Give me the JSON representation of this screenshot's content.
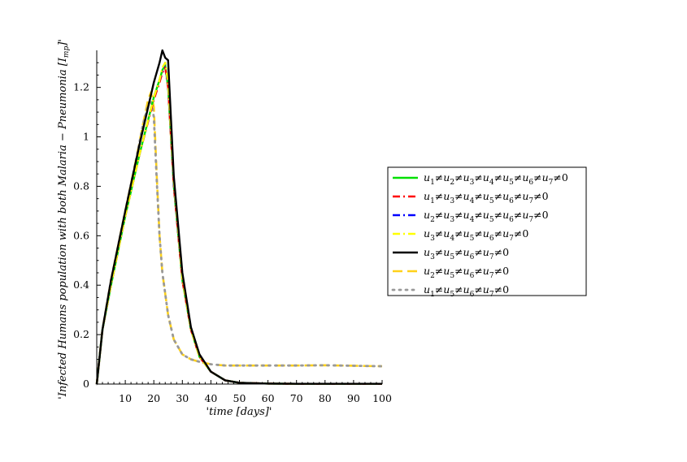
{
  "chart_data": {
    "type": "line",
    "title": "",
    "xlabel": "'time [days]'",
    "ylabel": "'Infected Humans population with both Malaria − Pneumonia [I_mp]'",
    "xlim": [
      0,
      100
    ],
    "ylim": [
      0,
      1.35
    ],
    "x_ticks": [
      10,
      20,
      30,
      40,
      50,
      60,
      70,
      80,
      90,
      100
    ],
    "y_ticks": [
      0,
      0.2,
      0.4,
      0.6,
      0.8,
      1,
      1.2
    ],
    "x_tick_labels": [
      "10",
      "20",
      "30",
      "40",
      "50",
      "60",
      "70",
      "80",
      "90",
      "100"
    ],
    "y_tick_labels": [
      "0",
      "0.2",
      "0.4",
      "0.6",
      "0.8",
      "1",
      "1.2"
    ],
    "grid": false,
    "legend_position": "right",
    "series": [
      {
        "name": "u1≠u2≠u3≠u4≠u5≠u6≠u7≠0",
        "color": "#00e000",
        "dash": "solid",
        "x": [
          0,
          2,
          5,
          10,
          15,
          20,
          22,
          23,
          24,
          25,
          27,
          30,
          33,
          36,
          40,
          45,
          50,
          60,
          70,
          80,
          90,
          100
        ],
        "y": [
          0,
          0.22,
          0.4,
          0.68,
          0.93,
          1.16,
          1.23,
          1.27,
          1.29,
          1.2,
          0.8,
          0.42,
          0.22,
          0.11,
          0.05,
          0.015,
          0.005,
          0.002,
          0.001,
          0.001,
          0.001,
          0.001
        ]
      },
      {
        "name": "u1≠u3≠u4≠u5≠u6≠u7≠0",
        "color": "#ff0000",
        "dash": "dashdot",
        "x": [
          0,
          2,
          5,
          10,
          15,
          20,
          22,
          23,
          24,
          25,
          27,
          30,
          33,
          36,
          40,
          45,
          50,
          60,
          70,
          80,
          90,
          100
        ],
        "y": [
          0,
          0.22,
          0.4,
          0.68,
          0.93,
          1.15,
          1.22,
          1.26,
          1.28,
          1.2,
          0.8,
          0.42,
          0.22,
          0.11,
          0.05,
          0.015,
          0.005,
          0.002,
          0.001,
          0.001,
          0.001,
          0.001
        ]
      },
      {
        "name": "u2≠u3≠u4≠u5≠u6≠u7≠0",
        "color": "#0000ff",
        "dash": "dashdot",
        "x": [
          0,
          2,
          5,
          10,
          15,
          20,
          22,
          23,
          24,
          25,
          27,
          30,
          33,
          36,
          40,
          45,
          50,
          60,
          70,
          80,
          90,
          100
        ],
        "y": [
          0,
          0.22,
          0.4,
          0.68,
          0.93,
          1.16,
          1.23,
          1.27,
          1.3,
          1.21,
          0.81,
          0.43,
          0.22,
          0.11,
          0.05,
          0.015,
          0.005,
          0.002,
          0.001,
          0.001,
          0.001,
          0.001
        ]
      },
      {
        "name": "u3≠u4≠u5≠u6≠u7≠0",
        "color": "#ffff00",
        "dash": "dashdot",
        "x": [
          0,
          2,
          5,
          10,
          15,
          20,
          22,
          23,
          24,
          25,
          27,
          30,
          33,
          36,
          40,
          45,
          50,
          60,
          70,
          80,
          90,
          100
        ],
        "y": [
          0,
          0.22,
          0.4,
          0.68,
          0.93,
          1.16,
          1.23,
          1.28,
          1.3,
          1.22,
          0.82,
          0.43,
          0.22,
          0.11,
          0.05,
          0.015,
          0.005,
          0.002,
          0.001,
          0.001,
          0.001,
          0.001
        ]
      },
      {
        "name": "u3≠u5≠u6≠u7≠0",
        "color": "#000000",
        "dash": "solid",
        "x": [
          0,
          2,
          5,
          10,
          15,
          20,
          22,
          23,
          24,
          25,
          27,
          30,
          33,
          36,
          40,
          45,
          50,
          60,
          70,
          80,
          90,
          100
        ],
        "y": [
          0,
          0.22,
          0.42,
          0.7,
          0.97,
          1.22,
          1.3,
          1.35,
          1.32,
          1.31,
          0.84,
          0.45,
          0.23,
          0.12,
          0.05,
          0.015,
          0.005,
          0.002,
          0.001,
          0.001,
          0.001,
          0.001
        ]
      },
      {
        "name": "u2≠u5≠u6≠u7≠0",
        "color": "#ffd11a",
        "dash": "longdash",
        "x": [
          0,
          2,
          5,
          10,
          14,
          16,
          18,
          19,
          20,
          21,
          22,
          23,
          25,
          27,
          30,
          33,
          36,
          40,
          45,
          50,
          60,
          70,
          80,
          90,
          100
        ],
        "y": [
          0,
          0.22,
          0.42,
          0.7,
          0.92,
          1.04,
          1.15,
          1.18,
          1.12,
          0.85,
          0.6,
          0.45,
          0.28,
          0.18,
          0.12,
          0.1,
          0.09,
          0.08,
          0.075,
          0.075,
          0.075,
          0.075,
          0.076,
          0.074,
          0.072
        ]
      },
      {
        "name": "u1≠u5≠u6≠u7≠0",
        "color": "#999999",
        "dash": "dotted",
        "x": [
          0,
          2,
          5,
          10,
          14,
          16,
          18,
          19,
          20,
          21,
          22,
          23,
          25,
          27,
          30,
          33,
          36,
          40,
          45,
          50,
          60,
          70,
          80,
          90,
          100
        ],
        "y": [
          0,
          0.22,
          0.42,
          0.7,
          0.92,
          1.04,
          1.13,
          1.15,
          1.08,
          0.83,
          0.6,
          0.45,
          0.28,
          0.18,
          0.12,
          0.1,
          0.09,
          0.08,
          0.075,
          0.075,
          0.075,
          0.075,
          0.076,
          0.074,
          0.072
        ]
      }
    ]
  },
  "legend": {
    "entries": [
      {
        "base": "u",
        "subs": [
          "1",
          "2",
          "3",
          "4",
          "5",
          "6",
          "7"
        ],
        "suffix": "≠0"
      },
      {
        "base": "u",
        "subs": [
          "1",
          "3",
          "4",
          "5",
          "6",
          "7"
        ],
        "suffix": "≠0"
      },
      {
        "base": "u",
        "subs": [
          "2",
          "3",
          "4",
          "5",
          "6",
          "7"
        ],
        "suffix": "≠0"
      },
      {
        "base": "u",
        "subs": [
          "3",
          "4",
          "5",
          "6",
          "7"
        ],
        "suffix": "≠0"
      },
      {
        "base": "u",
        "subs": [
          "3",
          "5",
          "6",
          "7"
        ],
        "suffix": "≠0"
      },
      {
        "base": "u",
        "subs": [
          "2",
          "5",
          "6",
          "7"
        ],
        "suffix": "≠0"
      },
      {
        "base": "u",
        "subs": [
          "1",
          "5",
          "6",
          "7"
        ],
        "suffix": "≠0"
      }
    ]
  },
  "ylabel_parts": {
    "main": "'Infected Humans population with both Malaria − Pneumonia [",
    "symbol": "I",
    "sub": "mp",
    "close": "]'"
  }
}
